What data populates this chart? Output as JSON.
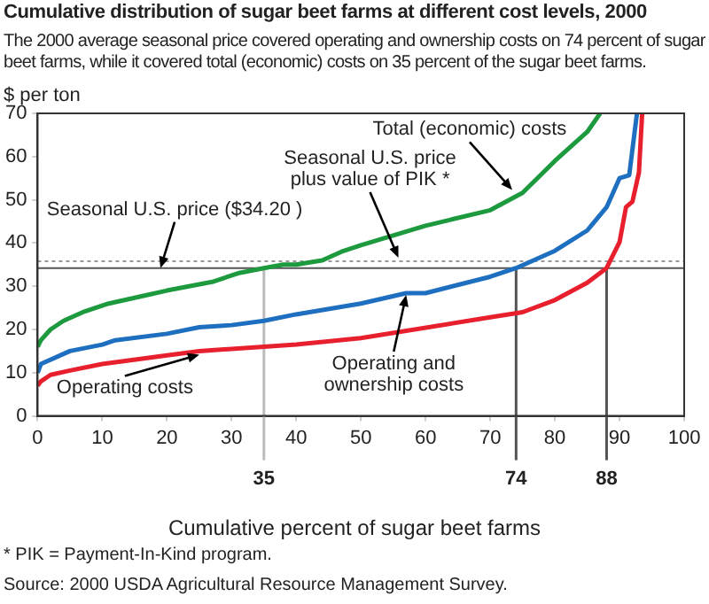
{
  "chart_data": {
    "type": "line",
    "title": "Cumulative distribution of sugar beet farms at different cost levels, 2000",
    "subtitle": "The 2000 average seasonal price covered operating and ownership costs on 74 percent of sugar beet farms, while it covered total (economic) costs on 35 percent of the sugar beet farms.",
    "xlabel": "Cumulative percent of sugar beet farms",
    "ylabel": "$ per ton",
    "series": [
      {
        "color": "#1e9a3e",
        "x": [
          0,
          0.5,
          2,
          4,
          7,
          11,
          17,
          20,
          27,
          31,
          35,
          38,
          40,
          44,
          47,
          50,
          60,
          70,
          75,
          80,
          85,
          87
        ],
        "values": [
          16,
          17.5,
          20,
          22,
          24,
          26,
          28,
          29,
          31,
          33,
          34.2,
          35,
          35,
          36,
          38,
          39.5,
          44,
          47.6,
          51.6,
          59,
          65.7,
          70
        ]
      },
      {
        "color": "#1e6fc0",
        "x": [
          0,
          0.5,
          5,
          10,
          12,
          20,
          25,
          30,
          35,
          40,
          50,
          57,
          60,
          70,
          74,
          80,
          85,
          88,
          90,
          91.5,
          92,
          92.7
        ],
        "values": [
          10,
          12,
          15,
          16.5,
          17.5,
          19,
          20.5,
          21,
          22,
          23.5,
          26,
          28.4,
          28.4,
          32.2,
          34.2,
          38.2,
          42.9,
          48.3,
          55,
          55.7,
          61.7,
          70
        ]
      },
      {
        "color": "#e8202e",
        "x": [
          0,
          0.5,
          2,
          5,
          10,
          20,
          25,
          30,
          35,
          40,
          50,
          70,
          75,
          80,
          85,
          88,
          90,
          91,
          92,
          93,
          93.5
        ],
        "values": [
          7,
          8,
          9.5,
          10.5,
          12,
          14,
          15,
          15.5,
          16,
          16.5,
          18,
          22.8,
          24,
          26.8,
          30.8,
          34.2,
          40.2,
          48.3,
          49.6,
          56.3,
          70
        ]
      }
    ],
    "xlim": [
      0,
      100
    ],
    "xticks": [
      0,
      10,
      20,
      30,
      40,
      50,
      60,
      70,
      80,
      90,
      100
    ],
    "ylim": [
      0,
      70
    ],
    "yticks": [
      0,
      10,
      20,
      30,
      40,
      50,
      60,
      70
    ],
    "ref_lines": [
      {
        "axis": "y",
        "value": 34.2,
        "color": "#555555",
        "line_style": "solid"
      },
      {
        "axis": "y",
        "value": 35.8,
        "color": "#999999",
        "line_style": "dotted"
      },
      {
        "axis": "x",
        "value": 35,
        "label": "35",
        "color": "#bbbbbb"
      },
      {
        "axis": "x",
        "value": 74,
        "label": "74",
        "color": "#555555"
      },
      {
        "axis": "x",
        "value": 88,
        "label": "88",
        "color": "#555555"
      }
    ],
    "annotations": [
      {
        "text": "Seasonal U.S. price ($34.20 )",
        "x": 19,
        "y": 34.2
      },
      {
        "text": "Seasonal U.S. price\nplus value of PIK *",
        "x": 55.8,
        "y": 35.8
      },
      {
        "text": "Total (economic) costs",
        "x": 73.4,
        "y": 52.3
      },
      {
        "text": "Operating and\nownership costs",
        "x": 57,
        "y": 28.4
      },
      {
        "text": "Operating costs",
        "x": 25,
        "y": 15
      },
      "* PIK = Payment-In-Kind program.",
      "Source: 2000 USDA Agricultural Resource Management Survey."
    ],
    "grid": false,
    "legend": false,
    "marker": "none",
    "line_style": "solid"
  }
}
